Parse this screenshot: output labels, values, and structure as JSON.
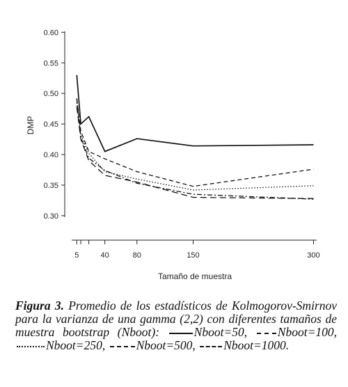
{
  "chart_data": {
    "type": "line",
    "title": "",
    "xlabel": "Tamaño de muestra",
    "ylabel": "DMP",
    "x": [
      5,
      10,
      20,
      40,
      80,
      150,
      300
    ],
    "x_ticks": [
      5,
      40,
      80,
      150,
      300
    ],
    "y_ticks": [
      "0.30",
      "0.35",
      "0.40",
      "0.45",
      "0.50",
      "0.55",
      "0.60"
    ],
    "xlim": [
      -10,
      310
    ],
    "ylim": [
      0.26,
      0.63
    ],
    "grid": false,
    "legend": "caption",
    "series": [
      {
        "name": "Nboot=50",
        "style": "solid",
        "values": [
          0.53,
          0.45,
          0.462,
          0.405,
          0.426,
          0.414,
          0.416
        ]
      },
      {
        "name": "Nboot=100",
        "style": "dashed",
        "values": [
          0.49,
          0.438,
          0.405,
          0.393,
          0.372,
          0.348,
          0.376
        ]
      },
      {
        "name": "Nboot=250",
        "style": "dotted",
        "values": [
          0.485,
          0.432,
          0.402,
          0.372,
          0.36,
          0.342,
          0.349
        ]
      },
      {
        "name": "Nboot=500",
        "style": "dashdot",
        "values": [
          0.492,
          0.428,
          0.394,
          0.374,
          0.353,
          0.335,
          0.327
        ]
      },
      {
        "name": "Nboot=1000",
        "style": "longdash",
        "values": [
          0.478,
          0.425,
          0.39,
          0.366,
          0.355,
          0.33,
          0.328
        ]
      }
    ]
  },
  "caption": {
    "label": "Figura 3.",
    "text": "Promedio de los estadísticos de Kolmogorov-Smirnov para la varianza de una gamma (2,2) con diferentes tamaños de muestra bootstrap (Nboot):",
    "legend_1": "Nboot=50,",
    "legend_2": "Nboot=100,",
    "legend_3": "Nboot=250,",
    "legend_4": "Nboot=500,",
    "legend_5": "Nboot=1000."
  }
}
